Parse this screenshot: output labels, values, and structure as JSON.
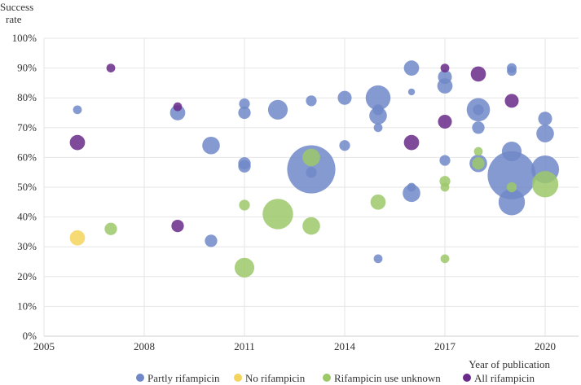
{
  "chart_data": {
    "type": "scatter",
    "title": "",
    "xlabel": "Year of publication",
    "ylabel_line1": "Success",
    "ylabel_line2": "rate",
    "xlim": [
      2005,
      2021
    ],
    "ylim": [
      0,
      100
    ],
    "x_ticks": [
      2005,
      2008,
      2011,
      2014,
      2017,
      2020
    ],
    "y_ticks": [
      0,
      10,
      20,
      30,
      40,
      50,
      60,
      70,
      80,
      90,
      100
    ],
    "y_tick_suffix": "%",
    "grid": true,
    "legend_position": "bottom",
    "series": [
      {
        "name": "Partly rifampicin",
        "color": "#7088c8",
        "points": [
          {
            "x": 2006,
            "y": 76,
            "size": 1
          },
          {
            "x": 2009,
            "y": 75,
            "size": 3
          },
          {
            "x": 2010,
            "y": 64,
            "size": 4
          },
          {
            "x": 2010,
            "y": 32,
            "size": 2
          },
          {
            "x": 2011,
            "y": 78,
            "size": 1.5
          },
          {
            "x": 2011,
            "y": 75,
            "size": 2
          },
          {
            "x": 2011,
            "y": 58,
            "size": 2
          },
          {
            "x": 2011,
            "y": 57,
            "size": 2
          },
          {
            "x": 2012,
            "y": 76,
            "size": 5
          },
          {
            "x": 2013,
            "y": 79,
            "size": 1.5
          },
          {
            "x": 2013,
            "y": 56,
            "size": 30
          },
          {
            "x": 2013,
            "y": 55,
            "size": 1.5
          },
          {
            "x": 2014,
            "y": 80,
            "size": 2.5
          },
          {
            "x": 2014,
            "y": 64,
            "size": 1.5
          },
          {
            "x": 2015,
            "y": 80,
            "size": 8
          },
          {
            "x": 2015,
            "y": 76,
            "size": 1.5
          },
          {
            "x": 2015,
            "y": 74,
            "size": 4
          },
          {
            "x": 2015,
            "y": 70,
            "size": 1
          },
          {
            "x": 2015,
            "y": 26,
            "size": 1
          },
          {
            "x": 2016,
            "y": 90,
            "size": 3
          },
          {
            "x": 2016,
            "y": 82,
            "size": 0.6
          },
          {
            "x": 2016,
            "y": 50,
            "size": 1
          },
          {
            "x": 2016,
            "y": 48,
            "size": 4
          },
          {
            "x": 2017,
            "y": 87,
            "size": 2.5
          },
          {
            "x": 2017,
            "y": 84,
            "size": 3
          },
          {
            "x": 2017,
            "y": 59,
            "size": 1.5
          },
          {
            "x": 2018,
            "y": 76,
            "size": 7
          },
          {
            "x": 2018,
            "y": 76,
            "size": 1.5
          },
          {
            "x": 2018,
            "y": 70,
            "size": 2
          },
          {
            "x": 2018,
            "y": 58,
            "size": 4
          },
          {
            "x": 2019,
            "y": 90,
            "size": 1.2
          },
          {
            "x": 2019,
            "y": 89,
            "size": 1.2
          },
          {
            "x": 2019,
            "y": 62,
            "size": 5
          },
          {
            "x": 2019,
            "y": 54,
            "size": 30
          },
          {
            "x": 2019,
            "y": 45,
            "size": 9
          },
          {
            "x": 2020,
            "y": 73,
            "size": 2.5
          },
          {
            "x": 2020,
            "y": 68,
            "size": 4
          },
          {
            "x": 2020,
            "y": 56,
            "size": 10
          }
        ]
      },
      {
        "name": "No rifampicin",
        "color": "#f5d45c",
        "points": [
          {
            "x": 2006,
            "y": 33,
            "size": 3
          }
        ]
      },
      {
        "name": "Rifampicin use unknown",
        "color": "#9cc86a",
        "points": [
          {
            "x": 2007,
            "y": 36,
            "size": 2
          },
          {
            "x": 2011,
            "y": 44,
            "size": 1.5
          },
          {
            "x": 2011,
            "y": 23,
            "size": 5
          },
          {
            "x": 2012,
            "y": 41,
            "size": 12
          },
          {
            "x": 2013,
            "y": 60,
            "size": 4
          },
          {
            "x": 2013,
            "y": 37,
            "size": 4
          },
          {
            "x": 2015,
            "y": 45,
            "size": 3
          },
          {
            "x": 2017,
            "y": 52,
            "size": 1.5
          },
          {
            "x": 2017,
            "y": 50,
            "size": 1
          },
          {
            "x": 2017,
            "y": 26,
            "size": 1
          },
          {
            "x": 2018,
            "y": 62,
            "size": 1
          },
          {
            "x": 2018,
            "y": 58,
            "size": 2
          },
          {
            "x": 2019,
            "y": 50,
            "size": 1.3
          },
          {
            "x": 2020,
            "y": 51,
            "size": 9
          }
        ]
      },
      {
        "name": "All rifampicin",
        "color": "#6a2a8a",
        "points": [
          {
            "x": 2006,
            "y": 65,
            "size": 3
          },
          {
            "x": 2007,
            "y": 90,
            "size": 1
          },
          {
            "x": 2009,
            "y": 77,
            "size": 1
          },
          {
            "x": 2009,
            "y": 37,
            "size": 2
          },
          {
            "x": 2016,
            "y": 65,
            "size": 3
          },
          {
            "x": 2017,
            "y": 90,
            "size": 1
          },
          {
            "x": 2017,
            "y": 72,
            "size": 2.5
          },
          {
            "x": 2018,
            "y": 88,
            "size": 3
          },
          {
            "x": 2019,
            "y": 79,
            "size": 2.5
          }
        ]
      }
    ]
  }
}
